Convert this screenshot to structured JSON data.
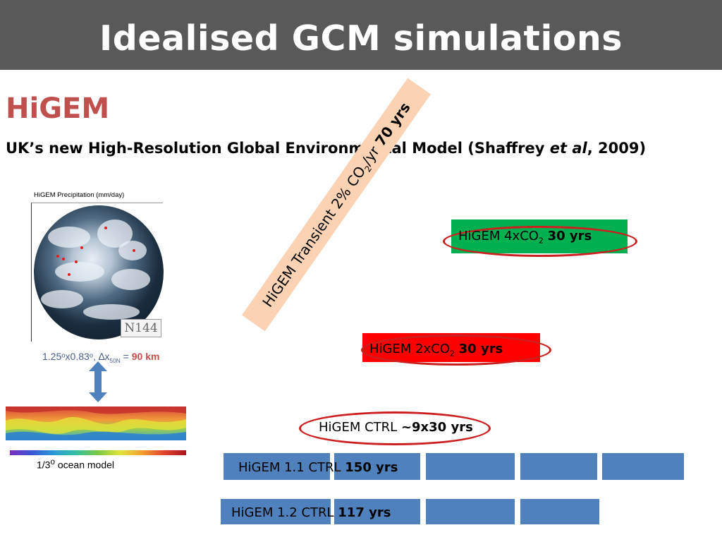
{
  "slide": {
    "title": "Idealised GCM simulations",
    "heading": "HiGEM",
    "subtitle_prefix": "UK’s new High-Resolution Global Environmental Model (Shaffrey ",
    "subtitle_italic": "et al",
    "subtitle_suffix": ", 2009)"
  },
  "figure": {
    "precip_label": "HiGEM Precipitation (mm/day)",
    "grid_label": "N144",
    "resolution_text": "1.25ᵒx0.83ᵒ, ∆x",
    "resolution_sub": "50N",
    "resolution_eq": " = ",
    "resolution_km": "90 km",
    "ocean_label_pre": "1/3",
    "ocean_label_sup": "o",
    "ocean_label_post": " ocean model"
  },
  "experiments": {
    "transient_pre": "HiGEM Transient 2% CO",
    "transient_sub": "2",
    "transient_post": "/yr ",
    "transient_bold": "70 yrs",
    "co2x4_pre": "HiGEM 4xCO",
    "co2x4_sub": "2",
    "co2x4_bold": "30 yrs",
    "co2x2_pre": "HiGEM 2xCO",
    "co2x2_sub": "2",
    "co2x2_bold": "30 yrs",
    "ctrl_pre": "HiGEM CTRL ",
    "ctrl_bold": "~9x30 yrs",
    "ctrl11_pre": "HiGEM 1.1 CTRL ",
    "ctrl11_bold": "150 yrs",
    "ctrl12_pre": "HiGEM 1.2 CTRL ",
    "ctrl12_bold": "117 yrs"
  },
  "colors": {
    "title_bar": "#595959",
    "heading": "#c0504d",
    "box_4xco2": "#00b050",
    "box_2xco2": "#ff0000",
    "ctrl_bars": "#4f81bd",
    "transient_band": "#fbd3b4",
    "ellipse": "#cc1f1f"
  }
}
